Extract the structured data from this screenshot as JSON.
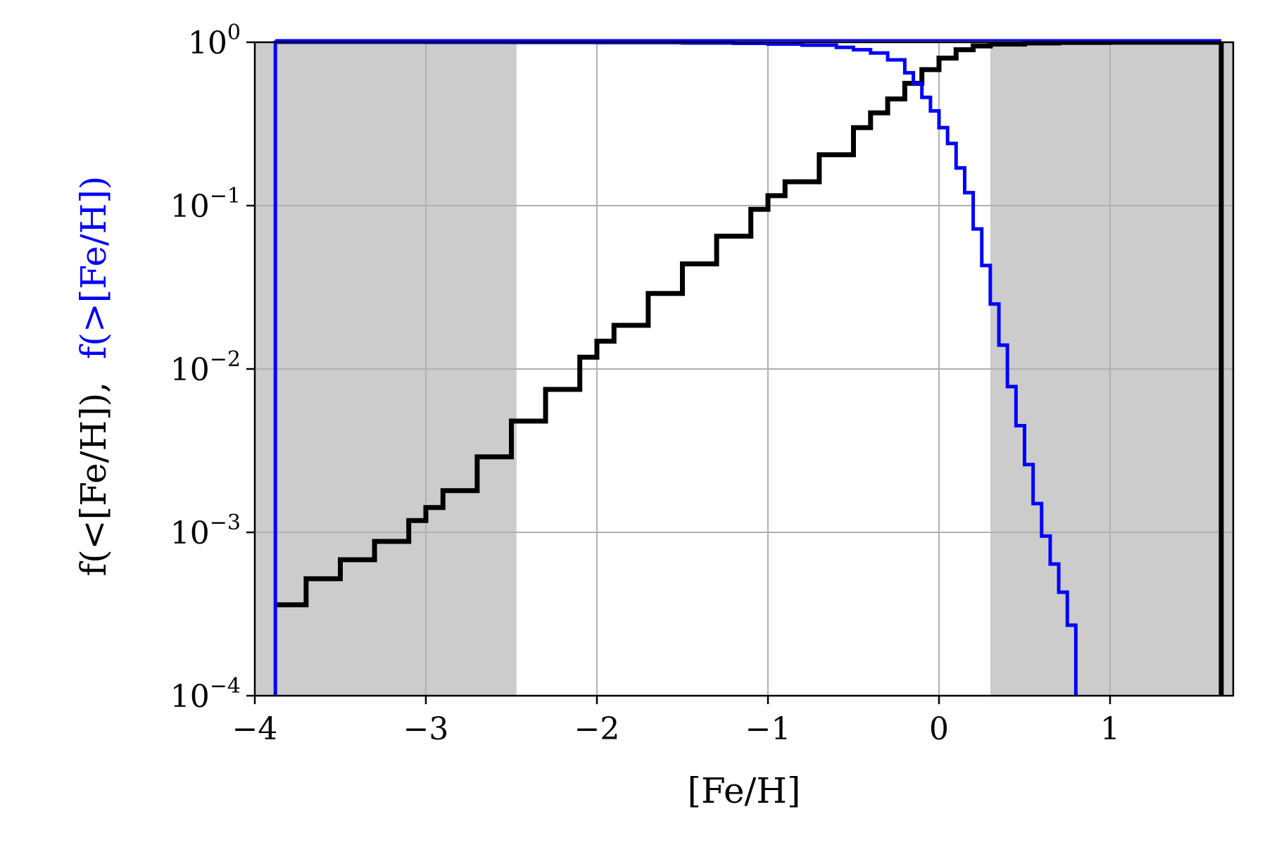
{
  "chart_data": {
    "type": "line",
    "xlabel": "[Fe/H]",
    "ylabel_parts": [
      {
        "text": "f(<[Fe/H]),",
        "color": "#000000"
      },
      {
        "text": "f(>[Fe/H])",
        "color": "#0000ff"
      }
    ],
    "xlim": [
      -4.0,
      1.72
    ],
    "ylim": [
      0.0001,
      1.0
    ],
    "yscale": "log",
    "grid": true,
    "x_ticks": [
      {
        "value": -4,
        "label": "−4"
      },
      {
        "value": -3,
        "label": "−3"
      },
      {
        "value": -2,
        "label": "−2"
      },
      {
        "value": -1,
        "label": "−1"
      },
      {
        "value": 0,
        "label": "0"
      },
      {
        "value": 1,
        "label": "1"
      }
    ],
    "y_ticks": [
      {
        "value": 1,
        "base": "10",
        "exp": "0"
      },
      {
        "value": 0.1,
        "base": "10",
        "exp": "−1"
      },
      {
        "value": 0.01,
        "base": "10",
        "exp": "−2"
      },
      {
        "value": 0.001,
        "base": "10",
        "exp": "−3"
      },
      {
        "value": 0.0001,
        "base": "10",
        "exp": "−4"
      }
    ],
    "shaded_regions": [
      {
        "x0": -4.0,
        "x1": -2.47,
        "color": "#cccccc"
      },
      {
        "x0": 0.3,
        "x1": 1.72,
        "color": "#cccccc"
      }
    ],
    "series": [
      {
        "color": "#000000",
        "x": [
          -3.88,
          -3.7,
          -3.5,
          -3.3,
          -3.1,
          -3.0,
          -2.9,
          -2.7,
          -2.5,
          -2.3,
          -2.1,
          -2.0,
          -1.9,
          -1.7,
          -1.5,
          -1.3,
          -1.1,
          -1.0,
          -0.9,
          -0.7,
          -0.5,
          -0.4,
          -0.3,
          -0.2,
          -0.1,
          0.0,
          0.1,
          0.2,
          0.3,
          0.5,
          0.7,
          1.0,
          1.3,
          1.65
        ],
        "y": [
          0.00036,
          0.00052,
          0.00068,
          0.00088,
          0.00118,
          0.00142,
          0.0018,
          0.0029,
          0.0048,
          0.0075,
          0.0118,
          0.0148,
          0.0185,
          0.029,
          0.044,
          0.065,
          0.095,
          0.115,
          0.14,
          0.205,
          0.3,
          0.37,
          0.45,
          0.56,
          0.68,
          0.8,
          0.9,
          0.95,
          0.975,
          0.99,
          0.997,
          1.0,
          1.0,
          1.0
        ]
      },
      {
        "color": "#0000ff",
        "x": [
          -3.88,
          -3.5,
          -3.0,
          -2.5,
          -2.0,
          -1.5,
          -1.2,
          -1.0,
          -0.8,
          -0.6,
          -0.5,
          -0.4,
          -0.3,
          -0.2,
          -0.15,
          -0.1,
          -0.05,
          0.0,
          0.05,
          0.1,
          0.15,
          0.2,
          0.25,
          0.3,
          0.35,
          0.4,
          0.45,
          0.5,
          0.55,
          0.6,
          0.65,
          0.7,
          0.75,
          0.8
        ],
        "y": [
          1.0,
          1.0,
          0.999,
          0.998,
          0.995,
          0.99,
          0.985,
          0.975,
          0.96,
          0.93,
          0.9,
          0.86,
          0.78,
          0.65,
          0.56,
          0.46,
          0.38,
          0.3,
          0.24,
          0.17,
          0.12,
          0.072,
          0.043,
          0.025,
          0.014,
          0.0078,
          0.0045,
          0.0026,
          0.0015,
          0.00095,
          0.00064,
          0.00043,
          0.00027,
          0.00016
        ]
      }
    ],
    "series_drop": {
      "x": -3.88
    },
    "right_edge_line": {
      "x": 1.65
    }
  }
}
